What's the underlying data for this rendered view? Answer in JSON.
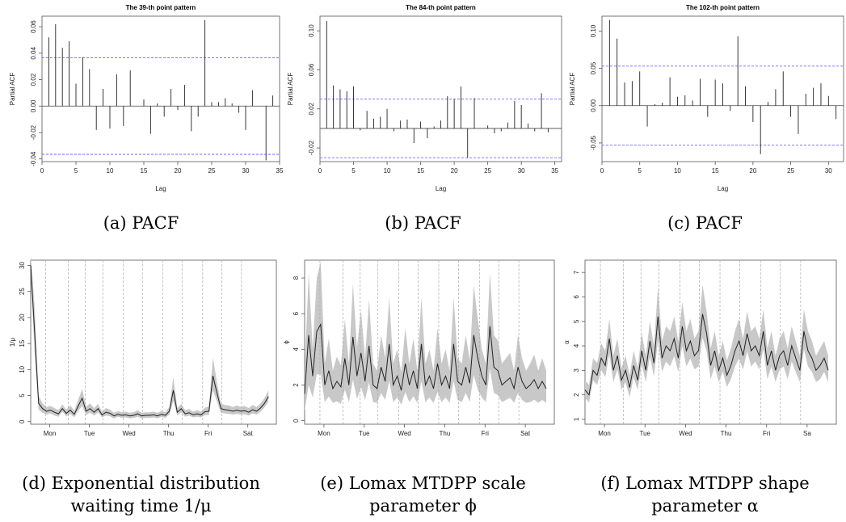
{
  "chart_data": [
    {
      "id": "a",
      "type": "bar",
      "title": "The 39-th point pattern",
      "xlabel": "Lag",
      "ylabel": "Partial ACF",
      "xlim": [
        0,
        35
      ],
      "ylim": [
        -0.042,
        0.068
      ],
      "xticks": [
        0,
        5,
        10,
        15,
        20,
        25,
        30,
        35
      ],
      "yticks": [
        -0.04,
        -0.02,
        0.0,
        0.02,
        0.04,
        0.06
      ],
      "ytick_labels": [
        "-0.04",
        "-0.02",
        "0.00",
        "0.02",
        "0.04",
        "0.06"
      ],
      "conf_band": 0.0365,
      "x": [
        1,
        2,
        3,
        4,
        5,
        6,
        7,
        8,
        9,
        10,
        11,
        12,
        13,
        14,
        15,
        16,
        17,
        18,
        19,
        20,
        21,
        22,
        23,
        24,
        25,
        26,
        27,
        28,
        29,
        30,
        31,
        32,
        33,
        34
      ],
      "values": [
        0.052,
        0.062,
        0.044,
        0.049,
        0.017,
        0.037,
        0.028,
        -0.018,
        0.013,
        -0.017,
        0.024,
        -0.015,
        0.027,
        0.0,
        0.005,
        -0.021,
        0.002,
        -0.008,
        0.013,
        -0.003,
        0.016,
        -0.019,
        -0.008,
        0.065,
        0.003,
        0.003,
        0.006,
        0.002,
        -0.005,
        -0.018,
        0.012,
        0.0,
        -0.041,
        0.008
      ],
      "caption": "(a) PACF"
    },
    {
      "id": "b",
      "type": "bar",
      "title": "The 84-th point pattern",
      "xlabel": "Lag",
      "ylabel": "Partial ACF",
      "xlim": [
        0,
        36
      ],
      "ylim": [
        -0.034,
        0.115
      ],
      "xticks": [
        0,
        5,
        10,
        15,
        20,
        25,
        30,
        35
      ],
      "yticks": [
        -0.02,
        0.02,
        0.06,
        0.1
      ],
      "ytick_labels": [
        "-0.02",
        "0.02",
        "0.06",
        "0.10"
      ],
      "conf_band": 0.03,
      "x": [
        1,
        2,
        3,
        4,
        5,
        6,
        7,
        8,
        9,
        10,
        11,
        12,
        13,
        14,
        15,
        16,
        17,
        18,
        19,
        20,
        21,
        22,
        23,
        24,
        25,
        26,
        27,
        28,
        29,
        30,
        31,
        32,
        33,
        34
      ],
      "values": [
        0.11,
        0.044,
        0.04,
        0.038,
        0.043,
        -0.002,
        0.018,
        0.01,
        0.012,
        0.02,
        -0.003,
        0.008,
        0.009,
        -0.015,
        0.007,
        -0.01,
        0.002,
        0.008,
        0.033,
        0.03,
        0.043,
        -0.03,
        0.031,
        0.0,
        0.003,
        -0.005,
        -0.003,
        0.006,
        0.028,
        0.024,
        0.005,
        -0.003,
        0.036,
        -0.004
      ],
      "caption": "(b) PACF"
    },
    {
      "id": "c",
      "type": "bar",
      "title": "The 102-th point pattern",
      "xlabel": "Lag",
      "ylabel": "Partial ACF",
      "xlim": [
        0,
        32
      ],
      "ylim": [
        -0.075,
        0.12
      ],
      "xticks": [
        0,
        5,
        10,
        15,
        20,
        25,
        30
      ],
      "yticks": [
        -0.05,
        0.0,
        0.05,
        0.1
      ],
      "ytick_labels": [
        "-0.05",
        "0.00",
        "0.05",
        "0.10"
      ],
      "conf_band": 0.053,
      "x": [
        1,
        2,
        3,
        4,
        5,
        6,
        7,
        8,
        9,
        10,
        11,
        12,
        13,
        14,
        15,
        16,
        17,
        18,
        19,
        20,
        21,
        22,
        23,
        24,
        25,
        26,
        27,
        28,
        29,
        30,
        31
      ],
      "values": [
        0.115,
        0.09,
        0.031,
        0.033,
        0.046,
        -0.028,
        0.002,
        0.004,
        0.038,
        0.012,
        0.014,
        0.007,
        0.036,
        -0.015,
        0.035,
        0.03,
        -0.007,
        0.093,
        0.026,
        -0.022,
        -0.065,
        0.005,
        0.022,
        0.046,
        -0.015,
        -0.038,
        0.016,
        0.024,
        0.03,
        0.013,
        -0.018
      ],
      "caption": "(c) PACF"
    },
    {
      "id": "d",
      "type": "line",
      "ylabel": "1/μ",
      "xlim": [
        0,
        6.2
      ],
      "ylim": [
        -0.5,
        31
      ],
      "yticks": [
        0,
        5,
        10,
        15,
        20,
        25,
        30
      ],
      "xtick_labels": [
        "Mon",
        "Tue",
        "Wed",
        "Thu",
        "Fri",
        "Sat"
      ],
      "xtick_pos": [
        0.48,
        1.48,
        2.48,
        3.48,
        4.48,
        5.48
      ],
      "vlines": [
        0.38,
        0.95,
        1.38,
        1.82,
        2.34,
        2.82,
        3.33,
        3.82,
        4.34,
        4.82,
        5.32
      ],
      "x": [
        0,
        0.1,
        0.2,
        0.3,
        0.4,
        0.5,
        0.6,
        0.7,
        0.8,
        0.9,
        1.0,
        1.1,
        1.2,
        1.3,
        1.4,
        1.5,
        1.6,
        1.7,
        1.8,
        1.9,
        2.0,
        2.1,
        2.2,
        2.3,
        2.4,
        2.5,
        2.6,
        2.7,
        2.8,
        2.9,
        3.0,
        3.1,
        3.2,
        3.3,
        3.4,
        3.5,
        3.6,
        3.7,
        3.8,
        3.9,
        4.0,
        4.1,
        4.2,
        4.3,
        4.4,
        4.5,
        4.6,
        4.7,
        4.8,
        4.9,
        5.0,
        5.1,
        5.2,
        5.3,
        5.4,
        5.5,
        5.6,
        5.7,
        5.8,
        5.9,
        6.0
      ],
      "values": [
        30,
        17,
        3.5,
        2.5,
        2.0,
        2.2,
        1.8,
        1.5,
        2.5,
        1.6,
        2.2,
        1.4,
        3.0,
        4.5,
        2.0,
        2.5,
        1.8,
        2.5,
        1.3,
        1.8,
        1.6,
        1.1,
        1.4,
        1.2,
        1.3,
        1.1,
        1.2,
        1.5,
        1.1,
        1.2,
        1.2,
        1.3,
        1.1,
        1.4,
        1.2,
        2.0,
        6.0,
        1.8,
        2.5,
        1.5,
        1.7,
        1.3,
        1.5,
        1.3,
        1.9,
        2.0,
        8.8,
        5.5,
        2.5,
        2.3,
        2.2,
        2.0,
        2.2,
        2.0,
        2.1,
        1.8,
        2.3,
        2.0,
        2.6,
        3.5,
        4.8
      ],
      "band_width": [
        2,
        5,
        1.5,
        1,
        0.8,
        0.8,
        0.8,
        0.7,
        0.8,
        0.7,
        0.9,
        0.7,
        1.2,
        1.8,
        0.9,
        1.0,
        0.8,
        0.9,
        0.6,
        0.8,
        0.7,
        0.6,
        0.6,
        0.6,
        0.6,
        0.6,
        0.6,
        0.7,
        0.6,
        0.6,
        0.6,
        0.6,
        0.6,
        0.6,
        0.6,
        0.8,
        2.5,
        0.8,
        0.9,
        0.7,
        0.7,
        0.6,
        0.7,
        0.6,
        0.8,
        0.9,
        3.5,
        2.0,
        1.0,
        0.9,
        0.9,
        0.8,
        0.9,
        0.8,
        0.9,
        0.8,
        0.9,
        0.8,
        0.9,
        1.0,
        1.2
      ],
      "caption": "(d) Exponential distribution waiting time 1/μ"
    },
    {
      "id": "e",
      "type": "line",
      "ylabel": "ϕ",
      "xlim": [
        0,
        6.2
      ],
      "ylim": [
        -0.2,
        9
      ],
      "yticks": [
        0,
        2,
        4,
        6,
        8
      ],
      "xtick_labels": [
        "Mon",
        "Tue",
        "Wed",
        "Thu",
        "Fri",
        "Sat"
      ],
      "xtick_pos": [
        0.48,
        1.48,
        2.48,
        3.48,
        4.48,
        5.48
      ],
      "vlines": [
        0.38,
        0.95,
        1.38,
        1.82,
        2.34,
        2.82,
        3.33,
        3.82,
        4.34,
        4.82,
        5.32
      ],
      "x": [
        0,
        0.1,
        0.2,
        0.3,
        0.4,
        0.5,
        0.6,
        0.7,
        0.8,
        0.9,
        1.0,
        1.1,
        1.2,
        1.3,
        1.4,
        1.5,
        1.6,
        1.7,
        1.8,
        1.9,
        2.0,
        2.1,
        2.2,
        2.3,
        2.4,
        2.5,
        2.6,
        2.7,
        2.8,
        2.9,
        3.0,
        3.1,
        3.2,
        3.3,
        3.4,
        3.5,
        3.6,
        3.7,
        3.8,
        3.9,
        4.0,
        4.1,
        4.2,
        4.3,
        4.4,
        4.5,
        4.6,
        4.7,
        4.8,
        4.9,
        5.0,
        5.1,
        5.2,
        5.3,
        5.4,
        5.5,
        5.6,
        5.7,
        5.8,
        5.9,
        6.0
      ],
      "values": [
        1.5,
        4.8,
        2.5,
        5.0,
        5.4,
        2.0,
        2.8,
        1.8,
        2.2,
        1.9,
        3.5,
        2.0,
        4.7,
        2.5,
        3.8,
        2.2,
        4.2,
        2.0,
        1.8,
        3.0,
        2.2,
        4.3,
        2.0,
        2.5,
        1.7,
        3.2,
        2.0,
        2.8,
        1.8,
        4.3,
        2.0,
        2.5,
        1.8,
        3.2,
        2.0,
        2.5,
        1.8,
        4.3,
        2.2,
        2.0,
        3.0,
        2.1,
        4.8,
        3.5,
        2.5,
        2.0,
        5.3,
        3.0,
        2.8,
        2.0,
        2.2,
        2.4,
        1.8,
        3.0,
        2.2,
        1.8,
        2.0,
        2.3,
        1.8,
        2.2,
        1.8
      ],
      "band_width": [
        1.2,
        3.5,
        1.5,
        3.0,
        3.5,
        1.2,
        1.8,
        1.0,
        1.4,
        1.2,
        2.2,
        1.2,
        3.0,
        1.6,
        2.4,
        1.3,
        2.6,
        1.2,
        1.0,
        1.8,
        1.3,
        2.6,
        1.2,
        1.5,
        1.0,
        2.0,
        1.2,
        1.8,
        1.0,
        2.6,
        1.2,
        1.5,
        1.0,
        2.0,
        1.2,
        1.5,
        1.0,
        2.6,
        1.3,
        1.2,
        1.8,
        1.3,
        2.8,
        2.2,
        1.5,
        1.2,
        3.0,
        1.8,
        1.7,
        1.2,
        1.3,
        1.4,
        1.0,
        1.8,
        1.3,
        1.0,
        1.2,
        1.4,
        1.0,
        1.3,
        1.0
      ],
      "caption": "(e) Lomax MTDPP scale parameter ϕ"
    },
    {
      "id": "f",
      "type": "line",
      "ylabel": "α",
      "xlim": [
        0,
        6.2
      ],
      "ylim": [
        0.8,
        7.5
      ],
      "yticks": [
        1,
        2,
        3,
        4,
        5,
        6,
        7
      ],
      "xtick_labels": [
        "Mon",
        "Tue",
        "Wed",
        "Thu",
        "Fri",
        "Sa"
      ],
      "xtick_pos": [
        0.48,
        1.48,
        2.48,
        3.48,
        4.48,
        5.48
      ],
      "vlines": [
        0.38,
        0.95,
        1.38,
        1.82,
        2.34,
        2.82,
        3.33,
        3.82,
        4.34,
        4.82,
        5.32
      ],
      "x": [
        0,
        0.1,
        0.2,
        0.3,
        0.4,
        0.5,
        0.6,
        0.7,
        0.8,
        0.9,
        1.0,
        1.1,
        1.2,
        1.3,
        1.4,
        1.5,
        1.6,
        1.7,
        1.8,
        1.9,
        2.0,
        2.1,
        2.2,
        2.3,
        2.4,
        2.5,
        2.6,
        2.7,
        2.8,
        2.9,
        3.0,
        3.1,
        3.2,
        3.3,
        3.4,
        3.5,
        3.6,
        3.7,
        3.8,
        3.9,
        4.0,
        4.1,
        4.2,
        4.3,
        4.4,
        4.5,
        4.6,
        4.7,
        4.8,
        4.9,
        5.0,
        5.1,
        5.2,
        5.3,
        5.4,
        5.5,
        5.6,
        5.7,
        5.8,
        5.9,
        6.0
      ],
      "values": [
        2.2,
        2.0,
        3.0,
        2.8,
        3.5,
        3.2,
        4.3,
        3.0,
        3.6,
        2.6,
        3.0,
        2.3,
        3.2,
        2.6,
        3.8,
        3.0,
        4.2,
        3.3,
        5.2,
        3.5,
        4.0,
        3.8,
        4.3,
        3.5,
        4.8,
        3.8,
        4.2,
        3.6,
        3.8,
        5.3,
        4.5,
        3.2,
        3.8,
        3.0,
        3.5,
        2.8,
        3.2,
        3.8,
        4.2,
        3.6,
        4.5,
        3.8,
        4.0,
        3.6,
        4.6,
        3.2,
        3.8,
        3.0,
        3.6,
        3.8,
        3.2,
        4.0,
        3.5,
        3.0,
        4.6,
        3.8,
        3.5,
        3.0,
        3.2,
        3.5,
        3.0
      ],
      "band_width": [
        0.4,
        0.4,
        0.5,
        0.5,
        0.6,
        0.6,
        0.8,
        0.6,
        0.7,
        0.5,
        0.6,
        0.5,
        0.6,
        0.5,
        0.7,
        0.6,
        0.8,
        0.7,
        1.2,
        0.7,
        0.8,
        0.8,
        0.9,
        0.7,
        1.0,
        0.8,
        0.9,
        0.7,
        0.8,
        1.2,
        0.9,
        0.7,
        0.8,
        0.6,
        0.7,
        0.6,
        0.7,
        0.8,
        0.9,
        0.7,
        0.9,
        0.8,
        0.8,
        0.7,
        0.9,
        0.7,
        0.8,
        0.6,
        0.7,
        0.8,
        0.7,
        0.8,
        0.7,
        0.6,
        0.9,
        0.8,
        0.7,
        0.6,
        0.7,
        0.7,
        0.6
      ],
      "caption": "(f) Lomax MTDPP shape parameter α"
    }
  ]
}
